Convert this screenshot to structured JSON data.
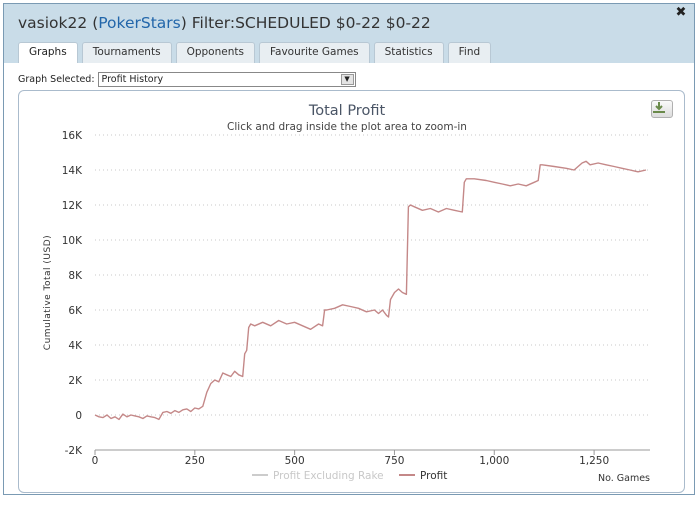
{
  "header": {
    "player": "vasiok22",
    "site": "PokerStars",
    "filter": "Filter:SCHEDULED $0-22 $0-22",
    "open_paren": "(",
    "close_paren": ")"
  },
  "close_glyph": "✖",
  "tabs": [
    {
      "label": "Graphs",
      "active": true
    },
    {
      "label": "Tournaments",
      "active": false
    },
    {
      "label": "Opponents",
      "active": false
    },
    {
      "label": "Favourite Games",
      "active": false
    },
    {
      "label": "Statistics",
      "active": false
    },
    {
      "label": "Find",
      "active": false
    }
  ],
  "graph_selector": {
    "label": "Graph Selected:",
    "value": "Profit History"
  },
  "colors": {
    "profit_line": "#c48888",
    "rake_line": "#cccccc",
    "title": "#4a5566",
    "header_bg": "#c9dce8",
    "link": "#2266aa"
  },
  "chart_data": {
    "type": "line",
    "title": "Total Profit",
    "subtitle": "Click and drag inside the plot area to zoom-in",
    "xlabel": "No. Games",
    "ylabel": "Cumulative Total (USD)",
    "xlim": [
      0,
      1390
    ],
    "ylim": [
      -2000,
      16000
    ],
    "x_ticks": [
      0,
      250,
      500,
      750,
      1000,
      1250
    ],
    "x_tick_labels": [
      "0",
      "250",
      "500",
      "750",
      "1,000",
      "1,250"
    ],
    "y_ticks": [
      -2000,
      0,
      2000,
      4000,
      6000,
      8000,
      10000,
      12000,
      14000,
      16000
    ],
    "y_tick_labels": [
      "-2K",
      "0",
      "2K",
      "4K",
      "6K",
      "8K",
      "10K",
      "12K",
      "14K",
      "16K"
    ],
    "grid": "horizontal dotted",
    "legend_placement": "bottom-center",
    "series": [
      {
        "name": "Profit Excluding Rake",
        "color": "#cccccc",
        "visible": false,
        "x": [],
        "y": []
      },
      {
        "name": "Profit",
        "color": "#c48888",
        "visible": true,
        "x": [
          0,
          10,
          20,
          30,
          40,
          50,
          60,
          70,
          80,
          90,
          100,
          110,
          120,
          130,
          140,
          150,
          160,
          170,
          180,
          190,
          200,
          210,
          220,
          230,
          240,
          250,
          260,
          270,
          280,
          290,
          300,
          310,
          320,
          330,
          340,
          350,
          360,
          370,
          375,
          380,
          385,
          390,
          400,
          420,
          440,
          460,
          480,
          500,
          520,
          540,
          560,
          570,
          575,
          580,
          600,
          620,
          640,
          660,
          680,
          700,
          710,
          720,
          730,
          735,
          740,
          750,
          760,
          770,
          780,
          785,
          790,
          800,
          820,
          840,
          860,
          880,
          900,
          920,
          925,
          930,
          950,
          980,
          1000,
          1020,
          1040,
          1060,
          1080,
          1100,
          1110,
          1115,
          1120,
          1150,
          1180,
          1200,
          1220,
          1230,
          1240,
          1260,
          1280,
          1300,
          1320,
          1340,
          1360,
          1380
        ],
        "y": [
          0,
          -100,
          -150,
          0,
          -200,
          -100,
          -250,
          50,
          -100,
          0,
          -50,
          -100,
          -200,
          -50,
          -100,
          -150,
          -250,
          150,
          200,
          100,
          250,
          150,
          300,
          350,
          200,
          400,
          350,
          500,
          1300,
          1800,
          2000,
          1900,
          2400,
          2300,
          2200,
          2500,
          2300,
          2200,
          3500,
          3700,
          5000,
          5200,
          5100,
          5300,
          5100,
          5400,
          5200,
          5300,
          5100,
          4900,
          5200,
          5100,
          6000,
          6000,
          6100,
          6300,
          6200,
          6100,
          5900,
          6000,
          5800,
          6000,
          5700,
          5600,
          6600,
          7000,
          7200,
          7000,
          6900,
          11900,
          12000,
          11900,
          11700,
          11800,
          11600,
          11800,
          11700,
          11600,
          13300,
          13500,
          13500,
          13400,
          13300,
          13200,
          13100,
          13200,
          13100,
          13300,
          13400,
          14300,
          14300,
          14200,
          14100,
          14000,
          14400,
          14500,
          14300,
          14400,
          14300,
          14200,
          14100,
          14000,
          13900,
          14000
        ]
      }
    ]
  }
}
